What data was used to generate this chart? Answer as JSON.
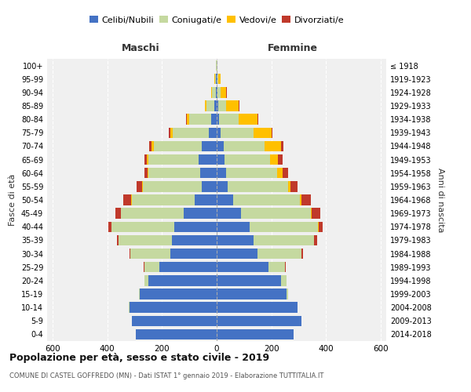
{
  "age_groups": [
    "0-4",
    "5-9",
    "10-14",
    "15-19",
    "20-24",
    "25-29",
    "30-34",
    "35-39",
    "40-44",
    "45-49",
    "50-54",
    "55-59",
    "60-64",
    "65-69",
    "70-74",
    "75-79",
    "80-84",
    "85-89",
    "90-94",
    "95-99",
    "100+"
  ],
  "birth_years": [
    "2014-2018",
    "2009-2013",
    "2004-2008",
    "1999-2003",
    "1994-1998",
    "1989-1993",
    "1984-1988",
    "1979-1983",
    "1974-1978",
    "1969-1973",
    "1964-1968",
    "1959-1963",
    "1954-1958",
    "1949-1953",
    "1944-1948",
    "1939-1943",
    "1934-1938",
    "1929-1933",
    "1924-1928",
    "1919-1923",
    "≤ 1918"
  ],
  "maschi": {
    "celibi": [
      295,
      310,
      320,
      280,
      250,
      210,
      170,
      165,
      155,
      120,
      80,
      55,
      60,
      65,
      55,
      30,
      20,
      8,
      4,
      2,
      0
    ],
    "coniugati": [
      0,
      0,
      2,
      3,
      15,
      55,
      145,
      195,
      230,
      230,
      230,
      215,
      190,
      185,
      175,
      130,
      80,
      30,
      12,
      5,
      2
    ],
    "vedovi": [
      0,
      0,
      0,
      0,
      0,
      0,
      0,
      0,
      1,
      1,
      2,
      2,
      3,
      5,
      8,
      10,
      10,
      5,
      3,
      2,
      0
    ],
    "divorziati": [
      0,
      0,
      0,
      0,
      0,
      1,
      3,
      5,
      10,
      20,
      30,
      20,
      10,
      10,
      10,
      5,
      2,
      1,
      0,
      0,
      0
    ]
  },
  "femmine": {
    "nubili": [
      280,
      310,
      295,
      255,
      235,
      190,
      150,
      135,
      120,
      90,
      60,
      40,
      35,
      30,
      25,
      15,
      10,
      5,
      3,
      2,
      0
    ],
    "coniugate": [
      0,
      0,
      2,
      5,
      20,
      60,
      160,
      220,
      250,
      255,
      245,
      220,
      185,
      165,
      150,
      120,
      70,
      30,
      12,
      5,
      2
    ],
    "vedove": [
      0,
      0,
      0,
      0,
      0,
      0,
      1,
      1,
      2,
      3,
      5,
      10,
      20,
      30,
      60,
      65,
      70,
      45,
      20,
      8,
      1
    ],
    "divorziate": [
      0,
      0,
      0,
      0,
      0,
      2,
      5,
      10,
      15,
      30,
      35,
      25,
      20,
      15,
      10,
      5,
      3,
      2,
      1,
      0,
      0
    ]
  },
  "colors": {
    "celibi": "#4472c4",
    "coniugati": "#c5d9a0",
    "vedovi": "#ffc000",
    "divorziati": "#c0392b"
  },
  "xlim": 620,
  "title": "Popolazione per età, sesso e stato civile - 2019",
  "subtitle": "COMUNE DI CASTEL GOFFREDO (MN) - Dati ISTAT 1° gennaio 2019 - Elaborazione TUTTITALIA.IT",
  "ylabel_left": "Fasce di età",
  "ylabel_right": "Anni di nascita",
  "maschi_label": "Maschi",
  "femmine_label": "Femmine",
  "legend_labels": [
    "Celibi/Nubili",
    "Coniugati/e",
    "Vedovi/e",
    "Divorziati/e"
  ],
  "bg_color": "#f0f0f0"
}
